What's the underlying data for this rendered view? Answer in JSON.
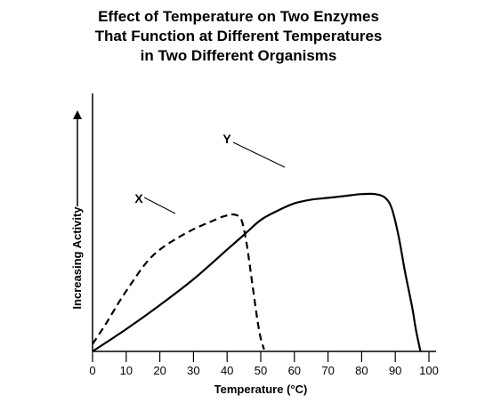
{
  "chart_data": {
    "type": "line",
    "title_lines": [
      "Effect of Temperature on Two Enzymes",
      "That Function at Different Temperatures",
      "in Two Different Organisms"
    ],
    "xlabel": "Temperature (°C)",
    "ylabel": "Increasing Activity",
    "xlim": [
      0,
      100
    ],
    "x_ticks": [
      0,
      10,
      20,
      30,
      40,
      50,
      60,
      70,
      80,
      90,
      100
    ],
    "grid": false,
    "legend": "none",
    "series": [
      {
        "name": "X",
        "style": "dashed",
        "points": [
          [
            0,
            0.04
          ],
          [
            4,
            0.15
          ],
          [
            8,
            0.27
          ],
          [
            12,
            0.38
          ],
          [
            16,
            0.48
          ],
          [
            20,
            0.55
          ],
          [
            25,
            0.61
          ],
          [
            30,
            0.66
          ],
          [
            35,
            0.7
          ],
          [
            39,
            0.73
          ],
          [
            42,
            0.74
          ],
          [
            44,
            0.72
          ],
          [
            45,
            0.66
          ],
          [
            46,
            0.56
          ],
          [
            47,
            0.43
          ],
          [
            48,
            0.3
          ],
          [
            49,
            0.17
          ],
          [
            50,
            0.07
          ],
          [
            51,
            0.01
          ]
        ]
      },
      {
        "name": "Y",
        "style": "solid",
        "points": [
          [
            0,
            0.0
          ],
          [
            10,
            0.12
          ],
          [
            20,
            0.25
          ],
          [
            30,
            0.39
          ],
          [
            40,
            0.55
          ],
          [
            45,
            0.63
          ],
          [
            50,
            0.71
          ],
          [
            55,
            0.76
          ],
          [
            60,
            0.8
          ],
          [
            65,
            0.82
          ],
          [
            70,
            0.83
          ],
          [
            75,
            0.84
          ],
          [
            80,
            0.85
          ],
          [
            84,
            0.85
          ],
          [
            87,
            0.83
          ],
          [
            89,
            0.77
          ],
          [
            91,
            0.62
          ],
          [
            93,
            0.42
          ],
          [
            95,
            0.24
          ],
          [
            96,
            0.13
          ],
          [
            97,
            0.04
          ],
          [
            97.5,
            0.0
          ]
        ]
      }
    ]
  }
}
